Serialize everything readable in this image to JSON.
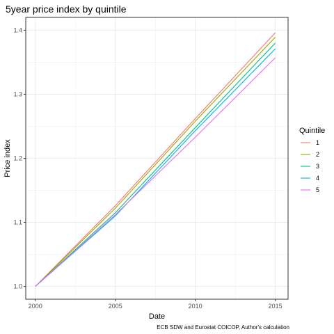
{
  "chart_data": {
    "type": "line",
    "title": "5year price index by quintile",
    "xlabel": "Date",
    "ylabel": "Price index",
    "caption": "ECB SDW and Eurostat COICOP, Author's calculation",
    "x": [
      2000,
      2005,
      2010,
      2015
    ],
    "x_ticks": [
      "2000",
      "2005",
      "2010",
      "2015"
    ],
    "y_ticks": [
      "1.0",
      "1.1",
      "1.2",
      "1.3",
      "1.4"
    ],
    "xlim": [
      1999.4,
      2015.8
    ],
    "ylim": [
      0.98,
      1.42
    ],
    "grid": true,
    "legend_title": "Quintile",
    "legend_position": "right",
    "series": [
      {
        "name": "1",
        "color": "#F8766D",
        "values": [
          1.0,
          1.126,
          1.262,
          1.396
        ]
      },
      {
        "name": "2",
        "color": "#A3A500",
        "values": [
          1.0,
          1.122,
          1.258,
          1.389
        ]
      },
      {
        "name": "3",
        "color": "#00BF7D",
        "values": [
          1.0,
          1.115,
          1.248,
          1.38
        ]
      },
      {
        "name": "4",
        "color": "#00B0F6",
        "values": [
          1.0,
          1.11,
          1.243,
          1.371
        ]
      },
      {
        "name": "5",
        "color": "#E76BF3",
        "values": [
          1.0,
          1.112,
          1.233,
          1.357
        ]
      }
    ]
  }
}
